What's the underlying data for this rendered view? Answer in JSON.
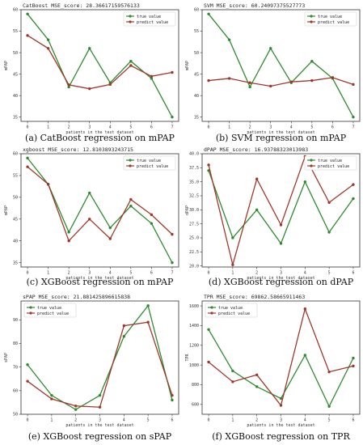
{
  "colors": {
    "true": "#2e8b2e",
    "predict": "#a0382a"
  },
  "chart_data": [
    {
      "type": "line",
      "title": "CatBoost MSE_score: 28.36617159576133",
      "caption": "(a) CatBoost regression on mPAP",
      "xlabel": "patients in the test dataset",
      "ylabel": "mPAP",
      "x": [
        0,
        1,
        2,
        3,
        4,
        5,
        6,
        7
      ],
      "xticks": [
        "0",
        "1",
        "2",
        "3",
        "4",
        "5",
        "6",
        "7"
      ],
      "ylim": [
        34,
        60
      ],
      "yticks": [
        35,
        40,
        45,
        50,
        55,
        60
      ],
      "legend": "top-right",
      "series": [
        {
          "name": "true value",
          "values": [
            59,
            53,
            42,
            51,
            43,
            48,
            44,
            35
          ]
        },
        {
          "name": "predict value",
          "values": [
            54,
            51,
            42.5,
            41.6,
            42.6,
            47,
            44.5,
            45.4
          ]
        }
      ]
    },
    {
      "type": "line",
      "title": "SVM MSE_score: 60.24097375527773",
      "caption": "(b) SVM regression on mPAP",
      "xlabel": "patients in the test dataset",
      "ylabel": "mPAP",
      "x": [
        0,
        1,
        2,
        3,
        4,
        5,
        6,
        7
      ],
      "xticks": [
        "0",
        "1",
        "2",
        "3",
        "4",
        "5",
        "6",
        "7"
      ],
      "ylim": [
        34,
        60
      ],
      "yticks": [
        35,
        40,
        45,
        50,
        55,
        60
      ],
      "legend": "top-right",
      "series": [
        {
          "name": "true value",
          "values": [
            59,
            53,
            42,
            51,
            43,
            48,
            44,
            35
          ]
        },
        {
          "name": "predict value",
          "values": [
            43.5,
            44,
            43,
            42.2,
            43.2,
            43.5,
            44.2,
            42.6
          ]
        }
      ]
    },
    {
      "type": "line",
      "title": "xgboost MSE_score: 12.8103893243715",
      "caption": "(c) XGBoost regression on mPAP",
      "xlabel": "patients in the test dataset",
      "ylabel": "mPAP",
      "x": [
        0,
        1,
        2,
        3,
        4,
        5,
        6,
        7
      ],
      "xticks": [
        "0",
        "1",
        "2",
        "3",
        "4",
        "5",
        "6",
        "7"
      ],
      "ylim": [
        34,
        60
      ],
      "yticks": [
        35,
        40,
        45,
        50,
        55,
        60
      ],
      "legend": "top-right",
      "series": [
        {
          "name": "true value",
          "values": [
            59,
            53,
            42,
            51,
            43,
            48,
            44,
            35
          ]
        },
        {
          "name": "predict value",
          "values": [
            57,
            53,
            40,
            45,
            40.5,
            49.5,
            46,
            41.5
          ]
        }
      ]
    },
    {
      "type": "line",
      "title": "dPAP MSE_score: 16.93788323013983",
      "caption": "(d) XGBoost regression on dPAP",
      "xlabel": "patients in the test dataset",
      "ylabel": "dPAP",
      "x": [
        0,
        1,
        2,
        3,
        4,
        5,
        6
      ],
      "xticks": [
        "0",
        "1",
        "2",
        "3",
        "4",
        "5",
        "6"
      ],
      "ylim": [
        19.8,
        40
      ],
      "yticks": [
        20.0,
        22.5,
        25.0,
        27.5,
        30.0,
        32.5,
        35.0,
        37.5,
        40.0
      ],
      "legend": "top-right",
      "series": [
        {
          "name": "true value",
          "values": [
            37,
            25,
            30,
            24,
            35,
            26,
            32
          ]
        },
        {
          "name": "predict value",
          "values": [
            38,
            20.2,
            35.5,
            27.3,
            39.5,
            31.3,
            34.5
          ]
        }
      ]
    },
    {
      "type": "line",
      "title": "sPAP MSE_score: 21.881425896615838",
      "caption": "(e) XGBoost regression on sPAP",
      "xlabel": "patients in the test dataset",
      "ylabel": "sPAP",
      "x": [
        0,
        1,
        2,
        3,
        4,
        5,
        6
      ],
      "xticks": [
        "0",
        "1",
        "2",
        "3",
        "4",
        "5",
        "6"
      ],
      "ylim": [
        50,
        98
      ],
      "yticks": [
        50,
        60,
        70,
        80,
        90
      ],
      "legend": "top-left",
      "series": [
        {
          "name": "true value",
          "values": [
            71,
            58,
            52,
            58,
            83,
            96,
            56
          ]
        },
        {
          "name": "predict value",
          "values": [
            64,
            56.5,
            53.5,
            53,
            87.5,
            89,
            58
          ]
        }
      ]
    },
    {
      "type": "line",
      "title": "TPR MSE_score: 69862.58665911463",
      "caption": "(f) XGBoost regression on TPR",
      "xlabel": "patients in the test dataset",
      "ylabel": "TPR",
      "x": [
        0,
        1,
        2,
        3,
        4,
        5,
        6
      ],
      "xticks": [
        "0",
        "1",
        "2",
        "3",
        "4",
        "5",
        "6"
      ],
      "ylim": [
        500,
        1650
      ],
      "yticks": [
        600,
        800,
        1000,
        1200,
        1400,
        1600
      ],
      "legend": "top-left",
      "series": [
        {
          "name": "true value",
          "values": [
            1360,
            940,
            780,
            660,
            1100,
            580,
            1070
          ]
        },
        {
          "name": "predict value",
          "values": [
            1030,
            830,
            900,
            590,
            1570,
            930,
            990
          ]
        }
      ]
    }
  ]
}
